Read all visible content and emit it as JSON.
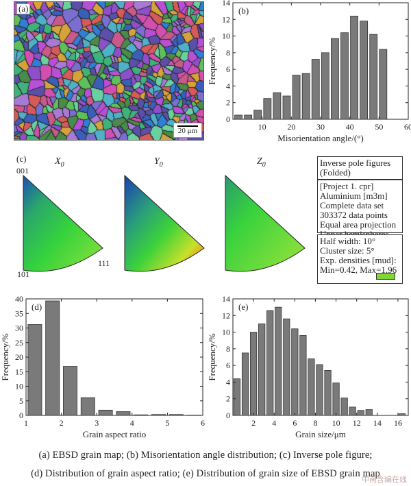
{
  "panel_a": {
    "label": "(a)",
    "scale_bar": "20 μm"
  },
  "panel_c": {
    "label": "(c)",
    "titles": [
      "X0",
      "Y0",
      "Z0"
    ],
    "title_letters": [
      "X",
      "Y",
      "Z"
    ],
    "title_subscript": "0",
    "corner_001": "001",
    "corner_101": "101",
    "corner_111": "111",
    "legend_box1": [
      "Inverse pole figures",
      "(Folded)"
    ],
    "legend_box2": [
      "[Project 1. cpr]",
      "Aluminium [m3m]",
      "Complete data set",
      "303372 data points",
      "Equal area projection",
      "Upper hemispheres"
    ],
    "legend_box3": [
      "Half width: 10°",
      "Cluster size: 5°",
      "Exp. densities [mud]:",
      "Min=0.42, Max=1.96"
    ],
    "legend_swatch_color": "#7fd637"
  },
  "chart_data": [
    {
      "id": "b",
      "type": "bar",
      "panel_label": "(b)",
      "xlabel": "Misorientation angle/(°)",
      "ylabel": "Frequency/%",
      "xlim": [
        0,
        60
      ],
      "ylim": [
        0,
        14
      ],
      "xticks": [
        10,
        20,
        30,
        40,
        50,
        60
      ],
      "yticks": [
        0,
        2,
        4,
        6,
        8,
        10,
        12,
        14
      ],
      "bin_width": 3.3,
      "x": [
        1.9,
        5.2,
        8.5,
        11.8,
        15.1,
        18.4,
        21.7,
        25.0,
        28.3,
        31.6,
        34.9,
        38.2,
        41.5,
        44.8,
        48.1,
        51.4,
        54.7,
        58.0
      ],
      "values": [
        0.5,
        0.5,
        1.1,
        2.5,
        3.2,
        2.8,
        5.3,
        5.5,
        7.2,
        8.0,
        9.7,
        10.4,
        12.4,
        11.8,
        10.2,
        8.4,
        0,
        0
      ]
    },
    {
      "id": "d",
      "type": "bar",
      "panel_label": "(d)",
      "xlabel": "Grain aspect ratio",
      "ylabel": "Frequency/%",
      "xlim": [
        1,
        6
      ],
      "ylim": [
        0,
        40
      ],
      "xticks": [
        1,
        2,
        3,
        4,
        5,
        6
      ],
      "yticks": [
        0,
        5,
        10,
        15,
        20,
        25,
        30,
        35,
        40
      ],
      "bin_width": 0.5,
      "x": [
        1.25,
        1.75,
        2.25,
        2.75,
        3.25,
        3.75,
        4.25,
        4.75,
        5.25,
        5.75
      ],
      "values": [
        31.2,
        39.3,
        16.8,
        6.1,
        1.8,
        1.3,
        0.2,
        0.3,
        0.3,
        0.1
      ]
    },
    {
      "id": "e",
      "type": "bar",
      "panel_label": "(e)",
      "xlabel": "Grain size/μm",
      "ylabel": "Frequency/%",
      "xlim": [
        0,
        17
      ],
      "ylim": [
        0,
        14
      ],
      "xticks": [
        2,
        4,
        6,
        8,
        10,
        12,
        14,
        16
      ],
      "yticks": [
        0,
        2,
        4,
        6,
        8,
        10,
        12,
        14
      ],
      "bin_width": 0.8,
      "x": [
        0.4,
        1.2,
        2.0,
        2.8,
        3.6,
        4.4,
        5.2,
        6.0,
        6.8,
        7.6,
        8.4,
        9.2,
        10.0,
        10.8,
        11.6,
        12.4,
        13.2,
        14.0,
        16.4
      ],
      "values": [
        4.4,
        7.5,
        10.0,
        11.0,
        12.6,
        13.0,
        11.6,
        10.4,
        9.6,
        6.8,
        6.1,
        5.4,
        3.9,
        2.1,
        1.0,
        0.6,
        0.7,
        0.0,
        0.2
      ]
    }
  ],
  "caption": {
    "line1": "(a)  EBSD  grain  map;  (b)  Misorientation  angle  distribution;  (c)  Inverse  pole  figure;",
    "line2": "(d) Distribution of grain aspect ratio; (e) Distribution of grain size of EBSD grain map"
  },
  "watermark": "中南含编在线"
}
